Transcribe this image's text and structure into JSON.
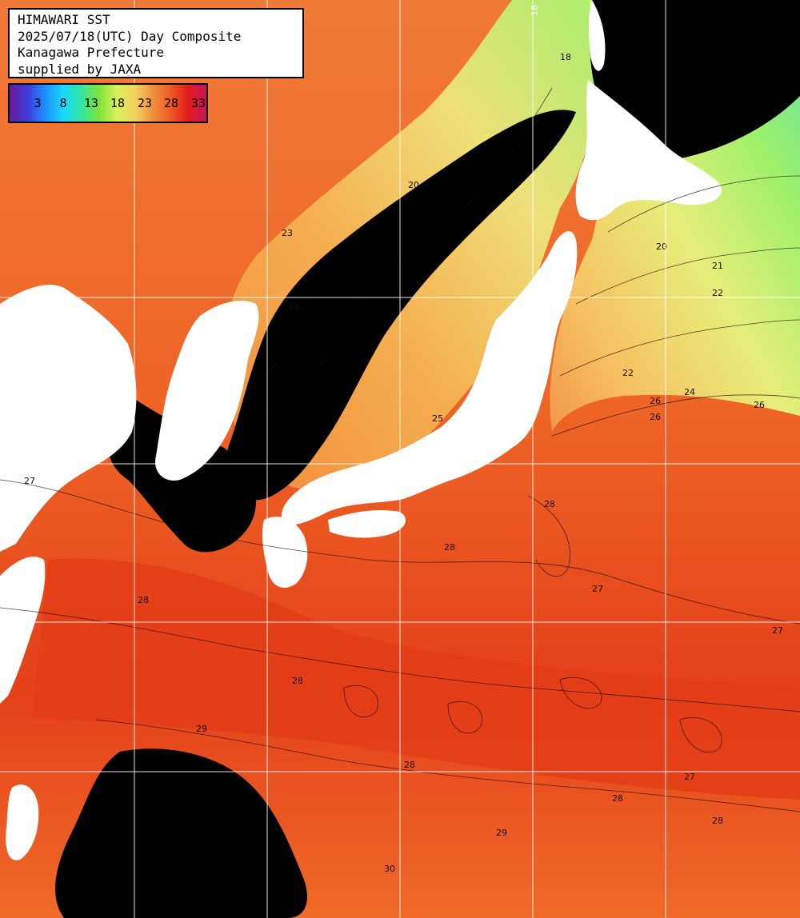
{
  "header": {
    "line1": "HIMAWARI SST",
    "line2": "2025/07/18(UTC) Day Composite",
    "line3": "Kanagawa Prefecture",
    "line4": "supplied by JAXA"
  },
  "legend": {
    "ticks": [
      "3",
      "8",
      "13",
      "18",
      "23",
      "28",
      "33"
    ],
    "colors": [
      "#6a1b9a",
      "#3f3bd9",
      "#1e90ff",
      "#19d9ff",
      "#34e6a0",
      "#7fe23a",
      "#d9f05a",
      "#f2d35c",
      "#f09040",
      "#ee5a24",
      "#e31a1c",
      "#c2185b"
    ]
  },
  "map": {
    "land_color": "#ffffff",
    "cloud_color": "#000000",
    "grid_color": "#ffffff",
    "contour_labels": [
      "18",
      "20",
      "21",
      "22",
      "23",
      "24",
      "25",
      "26",
      "27",
      "28",
      "29",
      "30"
    ]
  },
  "colors": {
    "cold": "#9ff06a",
    "mild": "#f3d26b",
    "warm": "#f08a3c",
    "hot": "#e74b1c",
    "hotter": "#d8280f"
  }
}
